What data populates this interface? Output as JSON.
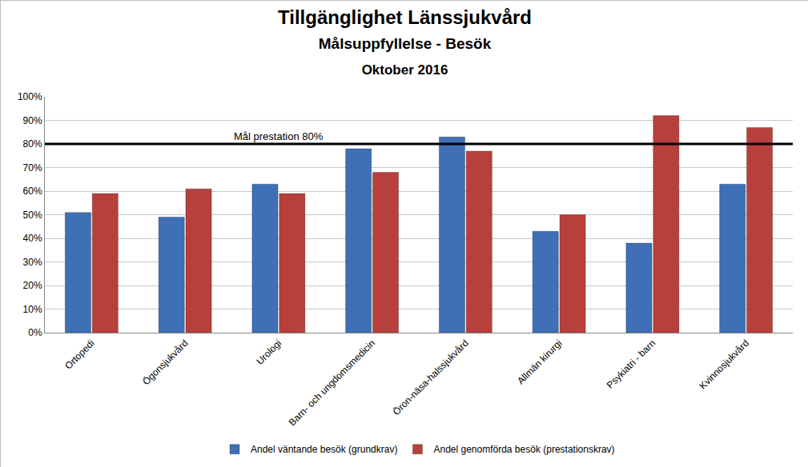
{
  "chart_data": {
    "type": "bar",
    "title": "Tillgänglighet Länssjukvård",
    "subtitle": [
      "Målsuppfyllelse - Besök",
      "Oktober 2016"
    ],
    "categories": [
      "Ortopedi",
      "Ögonsjukvård",
      "Urologi",
      "Barn- och ungdomsmedicin",
      "Öron-näsa-halssjukvård",
      "Allmän kirurgi",
      "Psykiatri - barn",
      "Kvinnosjukvård"
    ],
    "series": [
      {
        "name": "Andel väntande besök (grundkrav)",
        "color": "#3f6fb5",
        "values": [
          51,
          49,
          63,
          78,
          83,
          43,
          38,
          63
        ]
      },
      {
        "name": "Andel genomförda besök (prestationskrav)",
        "color": "#b8403c",
        "values": [
          59,
          61,
          59,
          68,
          77,
          50,
          92,
          87
        ]
      }
    ],
    "annotations": [
      {
        "text": "Mål prestation 80%",
        "y": 80
      }
    ],
    "ylim": [
      0,
      100
    ],
    "yticks": [
      {
        "value": 0,
        "label": "0%"
      },
      {
        "value": 10,
        "label": "10%"
      },
      {
        "value": 20,
        "label": "20%"
      },
      {
        "value": 30,
        "label": "30%"
      },
      {
        "value": 40,
        "label": "40%"
      },
      {
        "value": 50,
        "label": "50%"
      },
      {
        "value": 60,
        "label": "60%"
      },
      {
        "value": 70,
        "label": "70%"
      },
      {
        "value": 80,
        "label": "80%"
      },
      {
        "value": 90,
        "label": "90%"
      },
      {
        "value": 100,
        "label": "100%"
      }
    ],
    "grid": true,
    "legend": "bottom"
  }
}
